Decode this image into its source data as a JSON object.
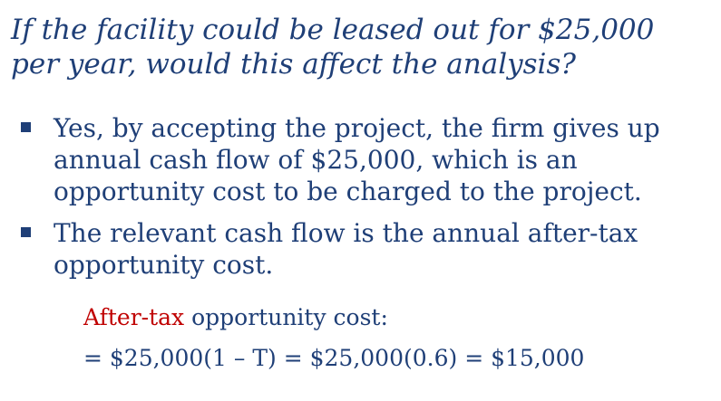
{
  "slide": {
    "title": "If the facility could be leased out for $25,000 per year, would this affect the analysis?",
    "bullets": [
      {
        "text": "Yes, by accepting the project, the firm gives up annual cash flow of $25,000, which is an opportunity cost to be charged to the project."
      },
      {
        "text": "The relevant cash flow is the annual after-tax opportunity cost."
      }
    ],
    "formula": {
      "label_highlight": "After-tax",
      "label_rest": " opportunity cost:",
      "equation": "= $25,000(1 – T) = $25,000(0.6) = $15,000"
    }
  },
  "colors": {
    "text": "#1f3f77",
    "highlight": "#c00000",
    "background": "#ffffff"
  }
}
